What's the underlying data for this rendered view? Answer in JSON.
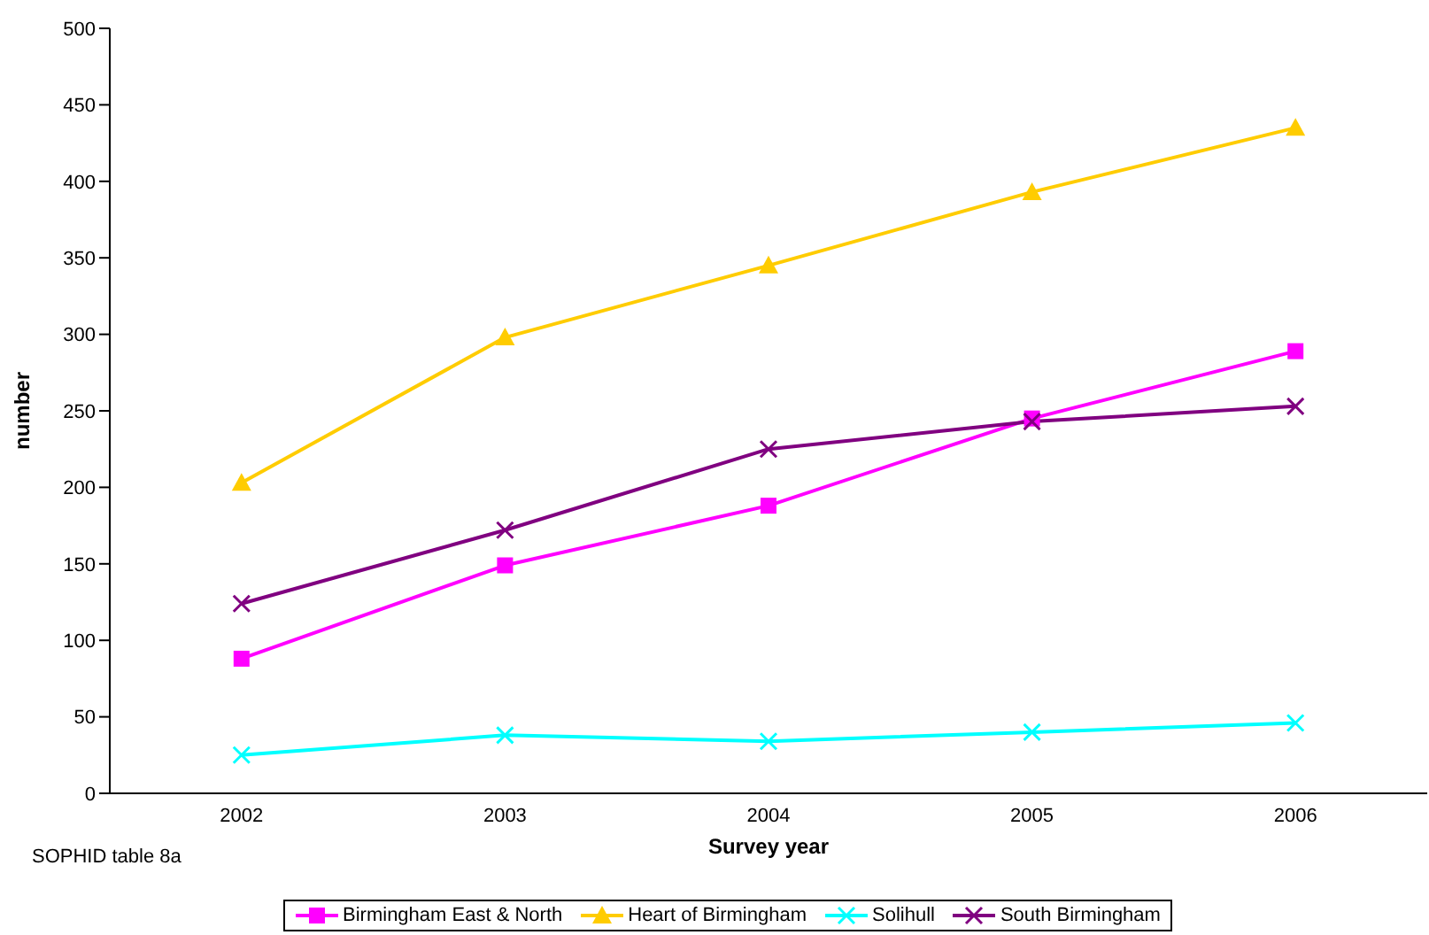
{
  "chart_data": {
    "type": "line",
    "xlabel": "Survey year",
    "ylabel": "number",
    "categories": [
      "2002",
      "2003",
      "2004",
      "2005",
      "2006"
    ],
    "ylim": [
      0,
      500
    ],
    "yticks": [
      0,
      50,
      100,
      150,
      200,
      250,
      300,
      350,
      400,
      450,
      500
    ],
    "grid": false,
    "legend": "bottom",
    "line_style": "solid",
    "annotations": [
      "SOPHID table 8a"
    ],
    "series": [
      {
        "name": "Birmingham East & North",
        "color": "#ff00ff",
        "marker": "square",
        "values": [
          88,
          149,
          188,
          245,
          289
        ]
      },
      {
        "name": "Heart of Birmingham",
        "color": "#ffcc00",
        "marker": "triangle",
        "values": [
          203,
          298,
          345,
          393,
          435
        ]
      },
      {
        "name": "Solihull",
        "color": "#00ffff",
        "marker": "cross",
        "values": [
          25,
          38,
          34,
          40,
          46
        ]
      },
      {
        "name": "South Birmingham",
        "color": "#800080",
        "marker": "cross",
        "values": [
          124,
          172,
          225,
          243,
          253
        ]
      }
    ]
  }
}
